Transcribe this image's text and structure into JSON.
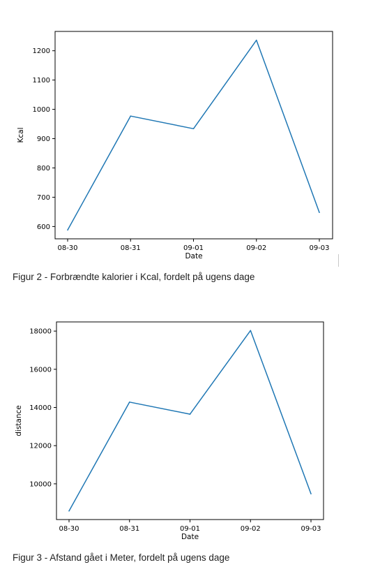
{
  "figures": [
    {
      "caption": "Figur 2 - Forbrændte kalorier i Kcal, fordelt på ugens dage"
    },
    {
      "caption": "Figur 3 - Afstand gået i Meter, fordelt på ugens dage"
    }
  ],
  "chart_data": [
    {
      "type": "line",
      "title": "",
      "xlabel": "Date",
      "ylabel": "Kcal",
      "categories": [
        "08-30",
        "08-31",
        "09-01",
        "09-02",
        "09-03"
      ],
      "series": [
        {
          "values": [
            588,
            977,
            934,
            1236,
            648
          ],
          "color": "#1f77b4"
        }
      ],
      "yticks": [
        600,
        700,
        800,
        900,
        1000,
        1100,
        1200
      ],
      "ylim": [
        558,
        1266
      ],
      "grid": false
    },
    {
      "type": "line",
      "title": "",
      "xlabel": "Date",
      "ylabel": "distance",
      "categories": [
        "08-30",
        "08-31",
        "09-01",
        "09-02",
        "09-03"
      ],
      "series": [
        {
          "values": [
            8580,
            14280,
            13650,
            18030,
            9480
          ],
          "color": "#1f77b4"
        }
      ],
      "yticks": [
        10000,
        12000,
        14000,
        16000,
        18000
      ],
      "ylim": [
        8130,
        18480
      ],
      "grid": false
    }
  ]
}
